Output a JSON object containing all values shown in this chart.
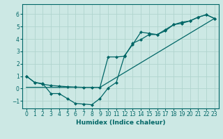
{
  "xlabel": "Humidex (Indice chaleur)",
  "ylabel": "",
  "bg_color": "#cce8e4",
  "grid_color": "#b0d4ce",
  "line_color": "#006666",
  "xlim": [
    -0.5,
    23.5
  ],
  "ylim": [
    -1.6,
    6.8
  ],
  "xticks": [
    0,
    1,
    2,
    3,
    4,
    5,
    6,
    7,
    8,
    9,
    10,
    11,
    12,
    13,
    14,
    15,
    16,
    17,
    18,
    19,
    20,
    21,
    22,
    23
  ],
  "yticks": [
    -1,
    0,
    1,
    2,
    3,
    4,
    5,
    6
  ],
  "line1_x": [
    0,
    1,
    2,
    3,
    4,
    5,
    6,
    7,
    8,
    9,
    10,
    11,
    12,
    13,
    14,
    15,
    16,
    17,
    18,
    19,
    20,
    21,
    22,
    23
  ],
  "line1_y": [
    1.0,
    0.5,
    0.4,
    -0.4,
    -0.4,
    -0.8,
    -1.2,
    -1.25,
    -1.3,
    -0.8,
    0.05,
    0.5,
    2.65,
    3.55,
    4.55,
    4.45,
    4.35,
    4.65,
    5.15,
    5.25,
    5.45,
    5.75,
    5.95,
    5.65
  ],
  "line2_x": [
    0,
    9,
    23
  ],
  "line2_y": [
    0.1,
    0.1,
    5.65
  ],
  "line3_x": [
    0,
    1,
    2,
    3,
    4,
    5,
    6,
    7,
    8,
    9,
    10,
    11,
    12,
    13,
    14,
    15,
    16,
    17,
    18,
    19,
    20,
    21,
    22,
    23
  ],
  "line3_y": [
    1.0,
    0.5,
    0.35,
    0.25,
    0.2,
    0.15,
    0.12,
    0.1,
    0.1,
    0.1,
    2.55,
    2.55,
    2.6,
    3.65,
    3.95,
    4.35,
    4.35,
    4.75,
    5.15,
    5.35,
    5.45,
    5.75,
    5.95,
    5.65
  ]
}
